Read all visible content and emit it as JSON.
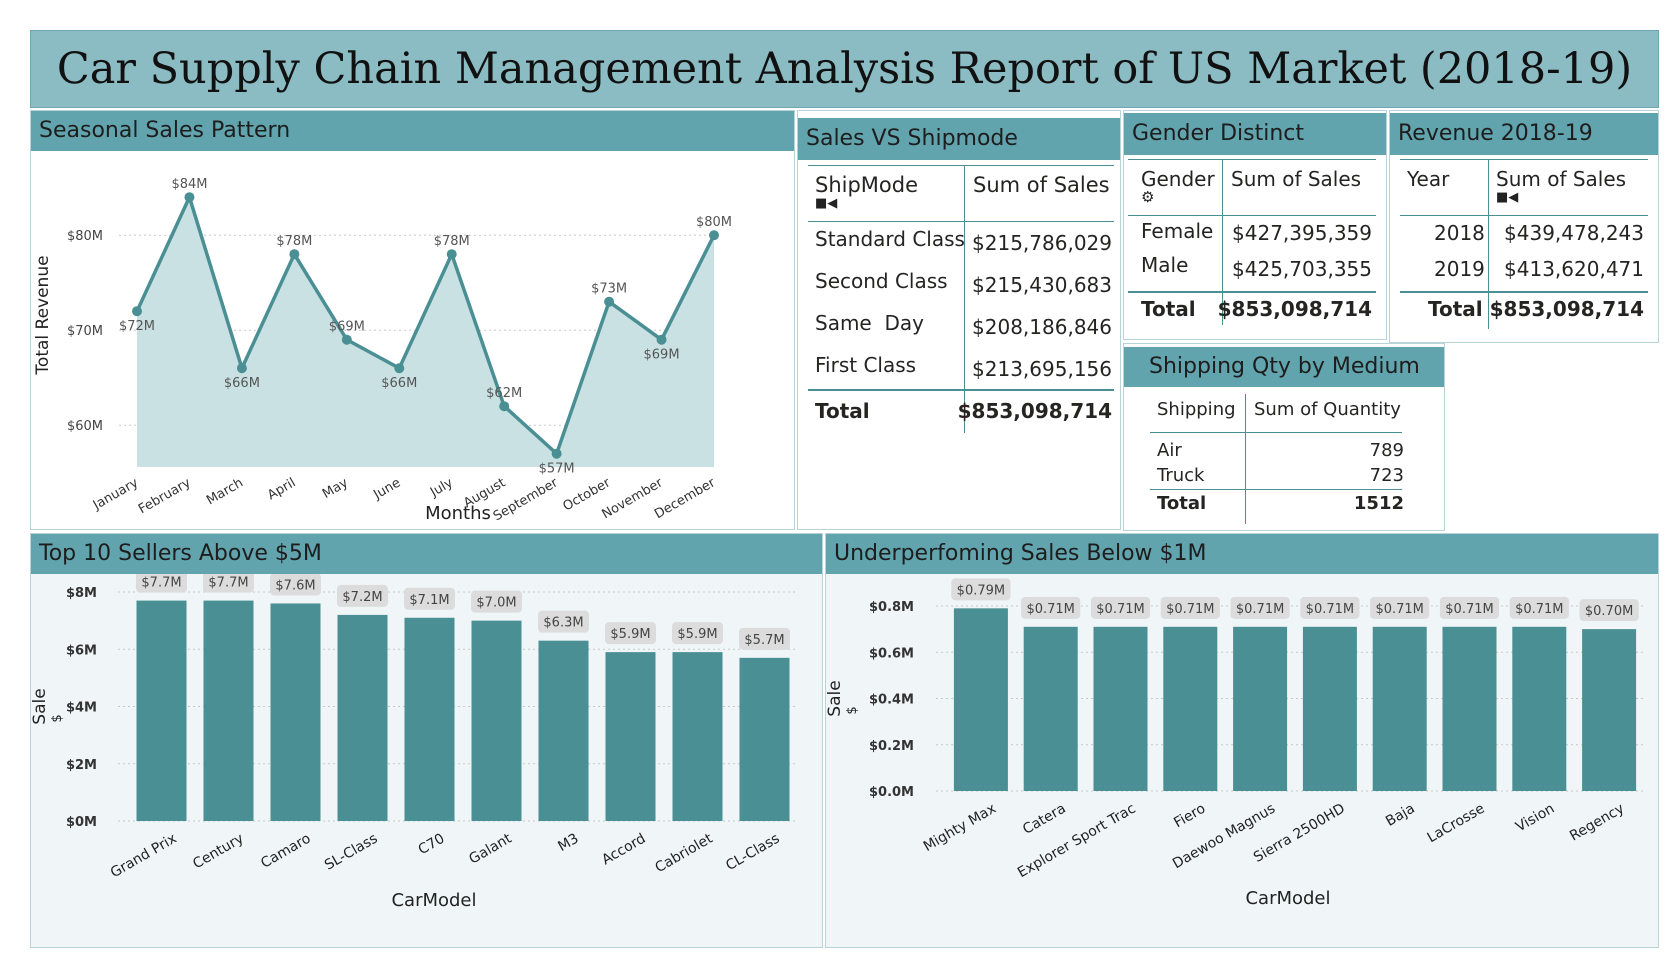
{
  "title": "Car Supply Chain Management Analysis Report of US Market (2018-19)",
  "colors": {
    "accent": "#4a8f94",
    "header": "#62a4ae",
    "title_bg": "#8bbcc4",
    "area_fill": "#c7dfe1"
  },
  "seasonal": {
    "heading": "Seasonal Sales Pattern",
    "chart_data": {
      "type": "line",
      "title": "Seasonal Sales Pattern",
      "xlabel": "Months",
      "ylabel": "Total Revenue",
      "categories": [
        "January",
        "February",
        "March",
        "April",
        "May",
        "June",
        "July",
        "August",
        "September",
        "October",
        "November",
        "December"
      ],
      "values": [
        72,
        84,
        66,
        78,
        69,
        66,
        78,
        62,
        57,
        73,
        69,
        80
      ],
      "data_labels": [
        "$72M",
        "$84M",
        "$66M",
        "$78M",
        "$69M",
        "$66M",
        "$78M",
        "$62M",
        "$57M",
        "$73M",
        "$69M",
        "$80M"
      ],
      "y_ticks": [
        {
          "v": 60,
          "label": "$60M"
        },
        {
          "v": 70,
          "label": "$70M"
        },
        {
          "v": 80,
          "label": "$80M"
        }
      ],
      "ylim": [
        55.6,
        87.6
      ],
      "grid": true
    }
  },
  "shipmode": {
    "heading": "Sales VS Shipmode",
    "col1": "ShipMode",
    "col2": "Sum of Sales",
    "sort_icon": "sort-icon",
    "rows": [
      {
        "mode": "Standard Class",
        "sales": "$215,786,029"
      },
      {
        "mode": "Second Class",
        "sales": "$215,430,683"
      },
      {
        "mode": "Same  Day",
        "sales": "$208,186,846"
      },
      {
        "mode": "First Class",
        "sales": "$213,695,156"
      }
    ],
    "total_label": "Total",
    "total_value": "$853,098,714"
  },
  "gender": {
    "heading": "Gender Distinct",
    "col1": "Gender",
    "col2": "Sum of Sales",
    "filter_icon": "gear-icon",
    "rows": [
      {
        "gender": "Female",
        "sales": "$427,395,359"
      },
      {
        "gender": "Male",
        "sales": "$425,703,355"
      }
    ],
    "total_label": "Total",
    "total_value": "$853,098,714"
  },
  "revenue": {
    "heading": "Revenue 2018-19",
    "col1": "Year",
    "col2": "Sum of Sales",
    "sort_icon": "sort-icon",
    "rows": [
      {
        "year": "2018",
        "sales": "$439,478,243"
      },
      {
        "year": "2019",
        "sales": "$413,620,471"
      }
    ],
    "total_label": "Total",
    "total_value": "$853,098,714"
  },
  "shipping": {
    "heading": "Shipping Qty by Medium",
    "col1": "Shipping",
    "col2": "Sum of Quantity",
    "rows": [
      {
        "medium": "Air",
        "qty": "789"
      },
      {
        "medium": "Truck",
        "qty": "723"
      }
    ],
    "total_label": "Total",
    "total_value": "1512"
  },
  "top10": {
    "heading": "Top 10 Sellers Above $5M",
    "chart_data": {
      "type": "bar",
      "title": "Top 10 Sellers Above $5M",
      "xlabel": "CarModel",
      "ylabel": "Sale",
      "ylabel_unit": "$",
      "categories": [
        "Grand Prix",
        "Century",
        "Camaro",
        "SL-Class",
        "C70",
        "Galant",
        "M3",
        "Accord",
        "Cabriolet",
        "CL-Class"
      ],
      "values": [
        7.7,
        7.7,
        7.6,
        7.2,
        7.1,
        7.0,
        6.3,
        5.9,
        5.9,
        5.7
      ],
      "data_labels": [
        "$7.7M",
        "$7.7M",
        "$7.6M",
        "$7.2M",
        "$7.1M",
        "$7.0M",
        "$6.3M",
        "$5.9M",
        "$5.9M",
        "$5.7M"
      ],
      "y_ticks": [
        {
          "v": 0,
          "label": "$0M"
        },
        {
          "v": 2,
          "label": "$2M"
        },
        {
          "v": 4,
          "label": "$4M"
        },
        {
          "v": 6,
          "label": "$6M"
        },
        {
          "v": 8,
          "label": "$8M"
        }
      ],
      "ylim": [
        0,
        8
      ],
      "grid": true
    }
  },
  "under": {
    "heading": "Underperfoming Sales Below $1M",
    "chart_data": {
      "type": "bar",
      "title": "Underperfoming Sales Below $1M",
      "xlabel": "CarModel",
      "ylabel": "Sale",
      "ylabel_unit": "$",
      "categories": [
        "Mighty Max",
        "Catera",
        "Explorer Sport Trac",
        "Fiero",
        "Daewoo Magnus",
        "Sierra 2500HD",
        "Baja",
        "LaCrosse",
        "Vision",
        "Regency"
      ],
      "values": [
        0.79,
        0.71,
        0.71,
        0.71,
        0.71,
        0.71,
        0.71,
        0.71,
        0.71,
        0.7
      ],
      "data_labels": [
        "$0.79M",
        "$0.71M",
        "$0.71M",
        "$0.71M",
        "$0.71M",
        "$0.71M",
        "$0.71M",
        "$0.71M",
        "$0.71M",
        "$0.70M"
      ],
      "y_ticks": [
        {
          "v": 0,
          "label": "$0.0M"
        },
        {
          "v": 0.2,
          "label": "$0.2M"
        },
        {
          "v": 0.4,
          "label": "$0.4M"
        },
        {
          "v": 0.6,
          "label": "$0.6M"
        },
        {
          "v": 0.8,
          "label": "$0.8M"
        }
      ],
      "ylim": [
        0,
        0.8
      ],
      "grid": true
    }
  }
}
